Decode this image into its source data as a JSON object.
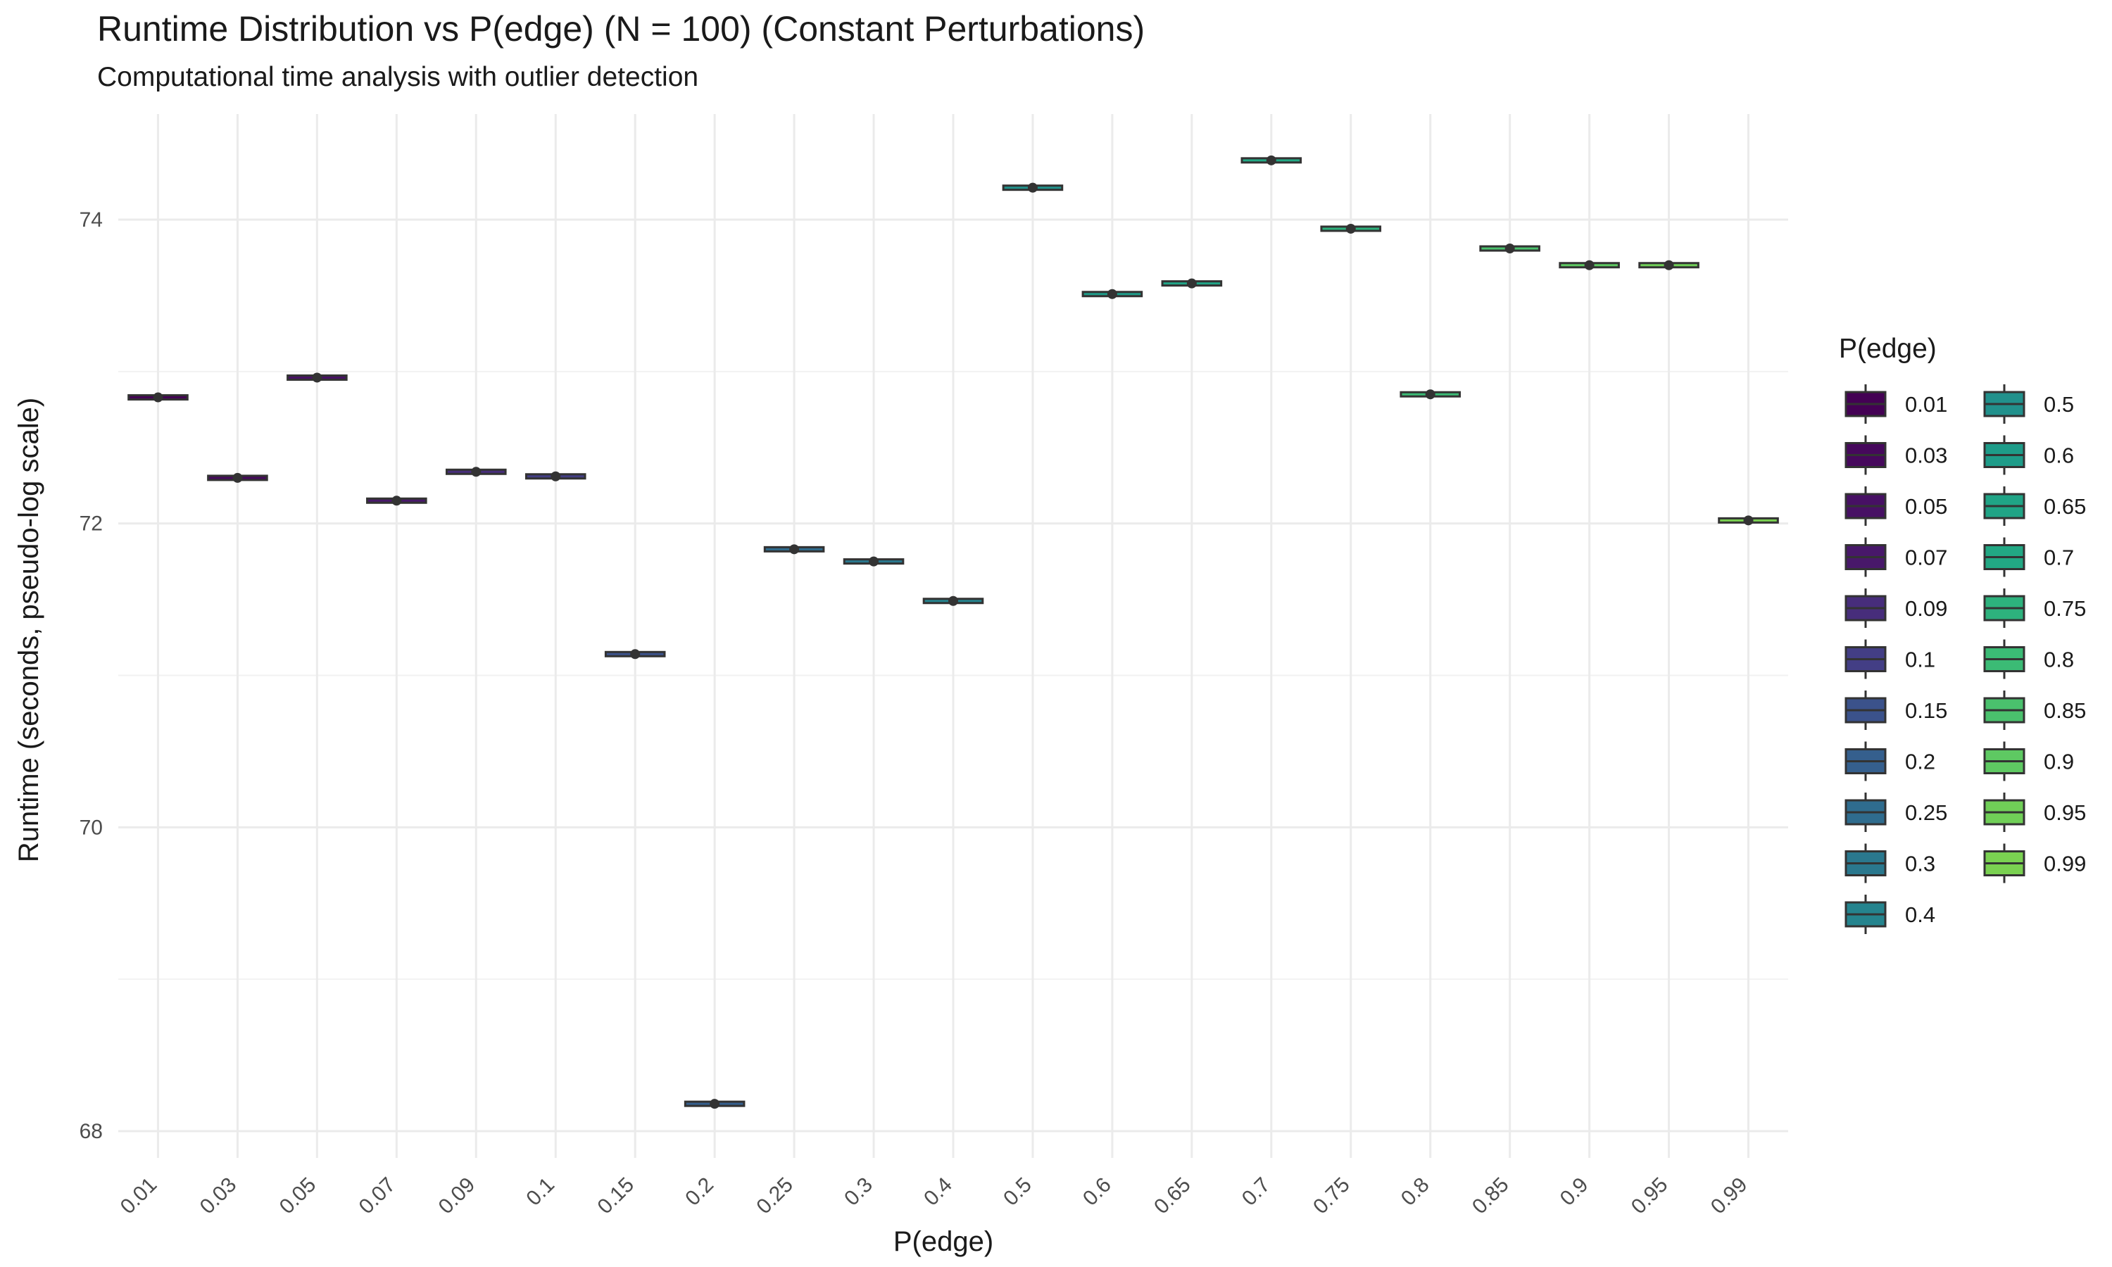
{
  "chart_data": {
    "type": "box",
    "title": "Runtime Distribution vs P(edge) (N = 100) (Constant Perturbations)",
    "subtitle": "Computational time analysis with outlier detection",
    "xlabel": "P(edge)",
    "ylabel": "Runtime (seconds, pseudo-log scale)",
    "y_scale": "pseudo-log",
    "ylim": [
      67.8,
      74.7
    ],
    "y_ticks": [
      68,
      70,
      72,
      74
    ],
    "grid": true,
    "legend": {
      "title": "P(edge)",
      "placement": "right",
      "columns": 2
    },
    "categories": [
      "0.01",
      "0.03",
      "0.05",
      "0.07",
      "0.09",
      "0.1",
      "0.15",
      "0.2",
      "0.25",
      "0.3",
      "0.4",
      "0.5",
      "0.6",
      "0.65",
      "0.7",
      "0.75",
      "0.8",
      "0.85",
      "0.9",
      "0.95",
      "0.99"
    ],
    "values": [
      72.83,
      72.3,
      72.96,
      72.15,
      72.34,
      72.31,
      71.14,
      68.18,
      71.83,
      71.75,
      71.49,
      74.21,
      73.51,
      73.58,
      74.39,
      73.94,
      72.85,
      73.81,
      73.7,
      73.7,
      72.02
    ],
    "colors": [
      "#440154",
      "#46085c",
      "#471064",
      "#48186a",
      "#472d7b",
      "#433e85",
      "#3b528b",
      "#355f8d",
      "#2f6c8e",
      "#2a788e",
      "#25848e",
      "#21918c",
      "#1e9c89",
      "#20a486",
      "#22a884",
      "#2db27d",
      "#3bbb75",
      "#4ac16d",
      "#5ec962",
      "#70cf57",
      "#7ad151"
    ]
  }
}
